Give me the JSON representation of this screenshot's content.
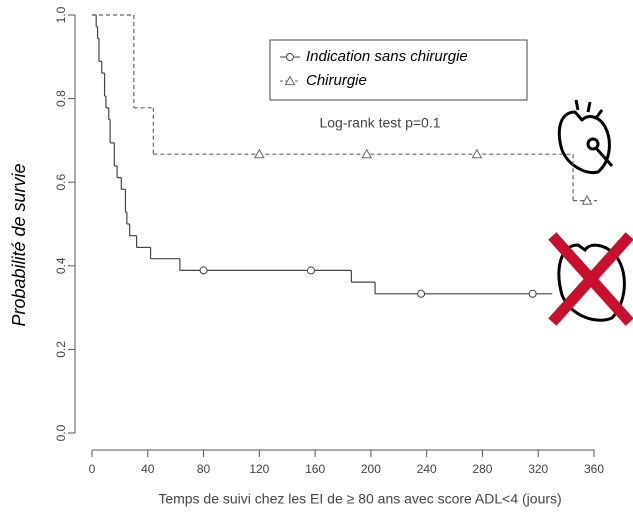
{
  "chart_data": {
    "type": "step",
    "subtitle": "Log-rank test p=0.1",
    "x_label": "Temps de suivi chez les EI  de ≥ 80 ans avec score ADL<4 (jours)",
    "y_label": "Probabilité de survie",
    "xlim": [
      0,
      360
    ],
    "ylim": [
      0,
      1
    ],
    "xticks": [
      0,
      40,
      80,
      120,
      160,
      200,
      240,
      280,
      320,
      360
    ],
    "yticks": [
      {
        "value": 0,
        "label": "0.0"
      },
      0.2,
      0.4,
      0.6,
      0.8,
      {
        "value": 1,
        "label": "1.0"
      }
    ],
    "series": [
      {
        "name": "Indication sans chirurgie",
        "color": "#444444",
        "dash": false,
        "marker": "circle",
        "x": [
          0,
          3,
          4,
          5,
          7,
          9,
          10,
          12,
          13,
          16,
          18,
          21,
          24,
          25,
          27,
          32,
          42,
          63,
          186,
          203,
          330
        ],
        "values": [
          1.0,
          0.972,
          0.944,
          0.889,
          0.861,
          0.806,
          0.778,
          0.75,
          0.694,
          0.639,
          0.611,
          0.583,
          0.528,
          0.5,
          0.472,
          0.444,
          0.417,
          0.389,
          0.361,
          0.333,
          0.333
        ],
        "censored_x": [
          80,
          157,
          236,
          316
        ],
        "censored_values": [
          0.389,
          0.389,
          0.333,
          0.333
        ]
      },
      {
        "name": "Chirurgie",
        "color": "#666666",
        "dash": true,
        "marker": "triangle",
        "x": [
          0,
          30,
          44,
          345,
          362
        ],
        "values": [
          1.0,
          0.778,
          0.667,
          0.556,
          0.556
        ],
        "censored_x": [
          120,
          197,
          276,
          355
        ],
        "censored_values": [
          0.667,
          0.667,
          0.667,
          0.556
        ]
      }
    ]
  }
}
